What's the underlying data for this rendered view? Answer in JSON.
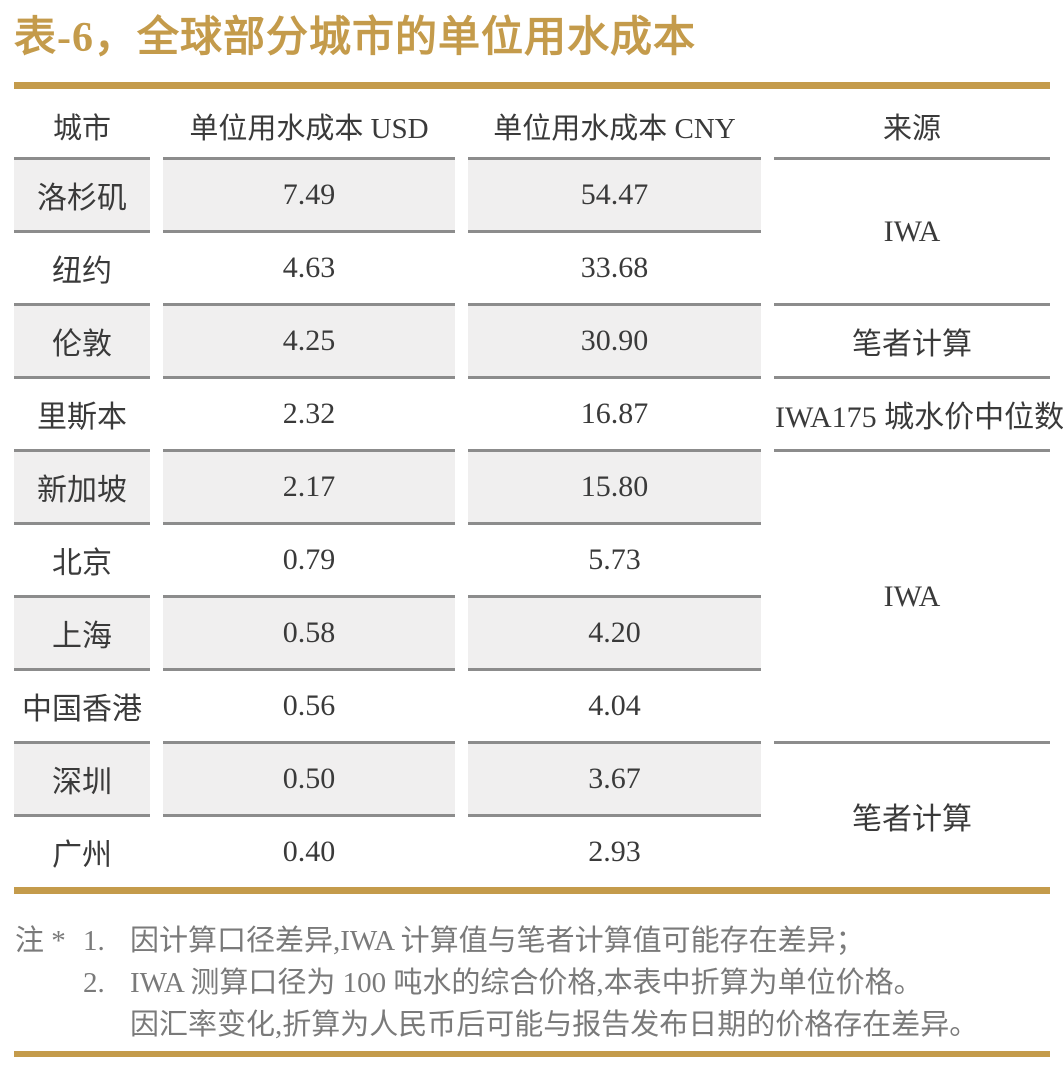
{
  "title": "表-6，全球部分城市的单位用水成本",
  "accent_color": "#C49B4B",
  "row_shade_color": "#F0EFEF",
  "separator_color": "#8C8C8C",
  "table": {
    "columns": [
      "城市",
      "单位用水成本 USD",
      "单位用水成本 CNY",
      "来源"
    ],
    "rows": [
      {
        "city": "洛杉矶",
        "usd": "7.49",
        "cny": "54.47"
      },
      {
        "city": "纽约",
        "usd": "4.63",
        "cny": "33.68"
      },
      {
        "city": "伦敦",
        "usd": "4.25",
        "cny": "30.90"
      },
      {
        "city": "里斯本",
        "usd": "2.32",
        "cny": "16.87"
      },
      {
        "city": "新加坡",
        "usd": "2.17",
        "cny": "15.80"
      },
      {
        "city": "北京",
        "usd": "0.79",
        "cny": "5.73"
      },
      {
        "city": "上海",
        "usd": "0.58",
        "cny": "4.20"
      },
      {
        "city": "中国香港",
        "usd": "0.56",
        "cny": "4.04"
      },
      {
        "city": "深圳",
        "usd": "0.50",
        "cny": "3.67"
      },
      {
        "city": "广州",
        "usd": "0.40",
        "cny": "2.93"
      }
    ],
    "source_groups": [
      {
        "label": "IWA",
        "rows": 2
      },
      {
        "label": "笔者计算",
        "rows": 1
      },
      {
        "label": "IWA175 城水价中位数",
        "rows": 1
      },
      {
        "label": "IWA",
        "rows": 4
      },
      {
        "label": "笔者计算",
        "rows": 2
      }
    ]
  },
  "notes": {
    "label": "注 *",
    "items": [
      {
        "num": "1.",
        "text": "因计算口径差异,IWA 计算值与笔者计算值可能存在差异；"
      },
      {
        "num": "2.",
        "text": "IWA 测算口径为 100 吨水的综合价格,本表中折算为单位价格。"
      },
      {
        "num": "",
        "text": "因汇率变化,折算为人民币后可能与报告发布日期的价格存在差异。"
      }
    ]
  },
  "chart_data": {
    "type": "table",
    "title": "表-6，全球部分城市的单位用水成本",
    "columns": [
      "城市",
      "单位用水成本 USD",
      "单位用水成本 CNY",
      "来源"
    ],
    "rows": [
      [
        "洛杉矶",
        7.49,
        54.47,
        "IWA"
      ],
      [
        "纽约",
        4.63,
        33.68,
        "IWA"
      ],
      [
        "伦敦",
        4.25,
        30.9,
        "笔者计算"
      ],
      [
        "里斯本",
        2.32,
        16.87,
        "IWA175 城水价中位数"
      ],
      [
        "新加坡",
        2.17,
        15.8,
        "IWA"
      ],
      [
        "北京",
        0.79,
        5.73,
        "IWA"
      ],
      [
        "上海",
        0.58,
        4.2,
        "IWA"
      ],
      [
        "中国香港",
        0.56,
        4.04,
        "IWA"
      ],
      [
        "深圳",
        0.5,
        3.67,
        "笔者计算"
      ],
      [
        "广州",
        0.4,
        2.93,
        "笔者计算"
      ]
    ]
  }
}
